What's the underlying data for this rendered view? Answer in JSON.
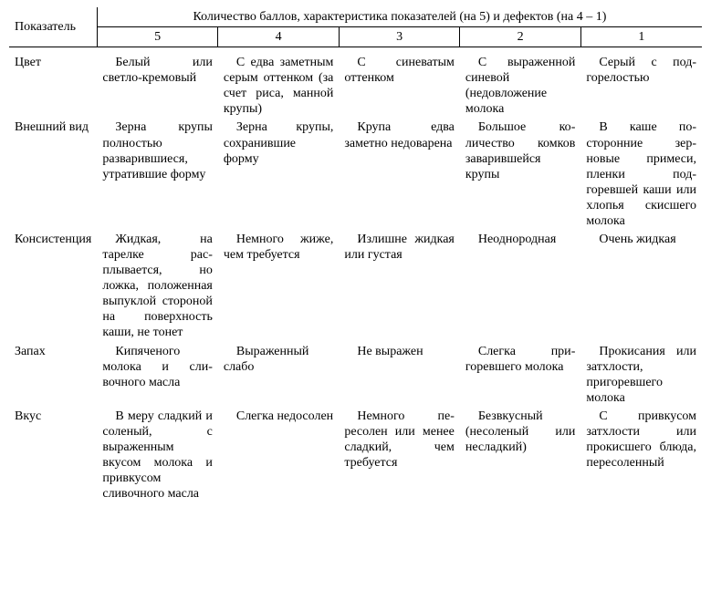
{
  "header": {
    "indicator_label": "Показатель",
    "group_label": "Количество баллов, характеристика показателей (на 5) и дефектов (на 4 – 1)",
    "scores": [
      "5",
      "4",
      "3",
      "2",
      "1"
    ]
  },
  "rows": [
    {
      "label": "Цвет",
      "cells": [
        "Белый или светло-кремо­вый",
        "С едва за­метным серым оттенком (за счет риса, ман­ной крупы)",
        "С синева­тым оттенком",
        "С выражен­ной синевой (недовложение молока",
        "Серый с под­горелостью"
      ]
    },
    {
      "label": "Внешний вид",
      "cells": [
        "Зерна крупы полностью разварившие­ся, утратившие форму",
        "Зерна крупы, сохранившие форму",
        "Крупа едва заметно недо­варена",
        "Большое ко­личество ком­ков заварив­шейся крупы",
        "В каше по­сторонние зер­новые приме­си, пленки под­горевшей ка­ши или хлопья скисшего мо­лока"
      ]
    },
    {
      "label": "Консистен­ция",
      "cells": [
        "Жидкая, на тарелке рас­плывается, но ложка, поло­женная вы­пуклой сторо­ной на поверх­ность каши, не тонет",
        "Немного жи­же, чем требу­ется",
        "Излишне жидкая или густая",
        "Неоднород­ная",
        "Очень жид­кая"
      ]
    },
    {
      "label": "Запах",
      "cells": [
        "Кипяченого молока и сли­вочного масла",
        "Выражен­ный слабо",
        "Не выражен",
        "Слегка при­горевшего мо­лока",
        "Прокисания или затхлости, пригоревшего молока"
      ]
    },
    {
      "label": "Вкус",
      "cells": [
        "В меру слад­кий и соленый, с выраженным вкусом молока и привкусом сливочного масла",
        "Слегка не­досолен",
        "Немного пе­ресолен или менее сладкий, чем требуется",
        "Безвкусный (несоленый или несладкий)",
        "С привкусом затхлости или прокисшего блюда, пересо­ленный"
      ]
    }
  ]
}
